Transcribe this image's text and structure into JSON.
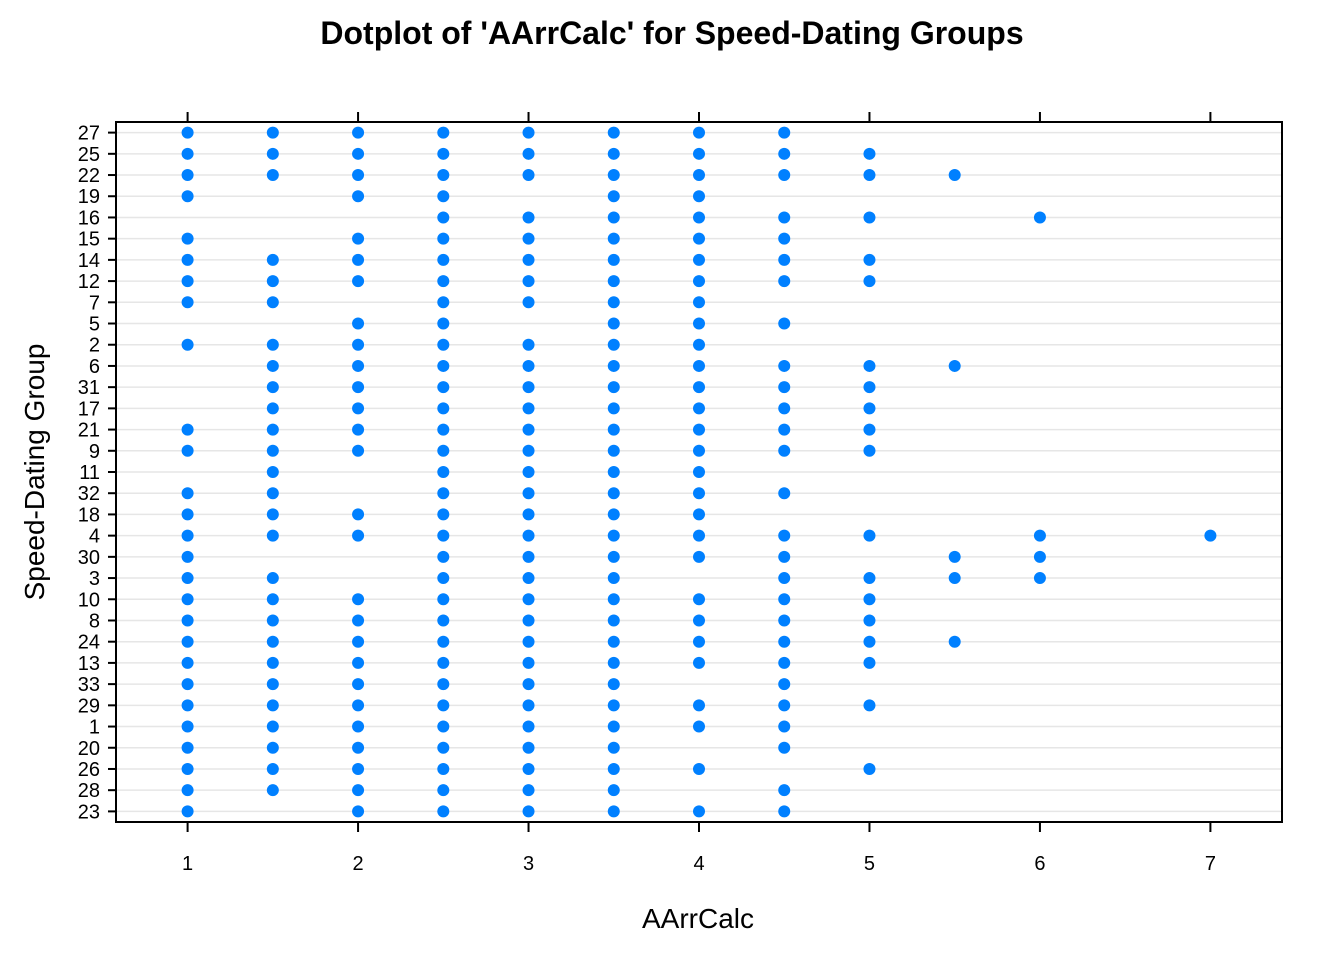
{
  "chart_data": {
    "type": "scatter",
    "title": "Dotplot of 'AArrCalc' for Speed-Dating Groups",
    "xlabel": "AArrCalc",
    "ylabel": "Speed-Dating Group",
    "xlim": [
      0.58,
      7.42
    ],
    "x_ticks": [
      "1",
      "2",
      "3",
      "4",
      "5",
      "6",
      "7"
    ],
    "y_categories": [
      "23",
      "28",
      "26",
      "20",
      "1",
      "29",
      "33",
      "13",
      "24",
      "8",
      "10",
      "3",
      "30",
      "4",
      "18",
      "32",
      "11",
      "9",
      "21",
      "17",
      "31",
      "6",
      "2",
      "5",
      "7",
      "12",
      "14",
      "15",
      "16",
      "19",
      "22",
      "25",
      "27"
    ],
    "grid": true,
    "point_color": "#0080ff",
    "series": [
      {
        "group": "27",
        "x": [
          1,
          1.5,
          2,
          2.5,
          3,
          3.5,
          4,
          4.5
        ]
      },
      {
        "group": "25",
        "x": [
          1,
          1.5,
          2,
          2.5,
          3,
          3.5,
          4,
          4.5,
          5
        ]
      },
      {
        "group": "22",
        "x": [
          1,
          1.5,
          2,
          2.5,
          3,
          3.5,
          4,
          4.5,
          5,
          5.5
        ]
      },
      {
        "group": "19",
        "x": [
          1,
          2,
          2.5,
          3.5,
          4
        ]
      },
      {
        "group": "16",
        "x": [
          2.5,
          3,
          3.5,
          4,
          4.5,
          5,
          6
        ]
      },
      {
        "group": "15",
        "x": [
          1,
          2,
          2.5,
          3,
          3.5,
          4,
          4.5
        ]
      },
      {
        "group": "14",
        "x": [
          1,
          1.5,
          2,
          2.5,
          3,
          3.5,
          4,
          4.5,
          5
        ]
      },
      {
        "group": "12",
        "x": [
          1,
          1.5,
          2,
          2.5,
          3,
          3.5,
          4,
          4.5,
          5
        ]
      },
      {
        "group": "7",
        "x": [
          1,
          1.5,
          2.5,
          3,
          3.5,
          4
        ]
      },
      {
        "group": "5",
        "x": [
          2,
          2.5,
          3.5,
          4,
          4.5
        ]
      },
      {
        "group": "2",
        "x": [
          1,
          1.5,
          2,
          2.5,
          3,
          3.5,
          4
        ]
      },
      {
        "group": "6",
        "x": [
          1.5,
          2,
          2.5,
          3,
          3.5,
          4,
          4.5,
          5,
          5.5
        ]
      },
      {
        "group": "31",
        "x": [
          1.5,
          2,
          2.5,
          3,
          3.5,
          4,
          4.5,
          5
        ]
      },
      {
        "group": "17",
        "x": [
          1.5,
          2,
          2.5,
          3,
          3.5,
          4,
          4.5,
          5
        ]
      },
      {
        "group": "21",
        "x": [
          1,
          1.5,
          2,
          2.5,
          3,
          3.5,
          4,
          4.5,
          5
        ]
      },
      {
        "group": "9",
        "x": [
          1,
          1.5,
          2,
          2.5,
          3,
          3.5,
          4,
          4.5,
          5
        ]
      },
      {
        "group": "11",
        "x": [
          1.5,
          2.5,
          3,
          3.5,
          4
        ]
      },
      {
        "group": "32",
        "x": [
          1,
          1.5,
          2.5,
          3,
          3.5,
          4,
          4.5
        ]
      },
      {
        "group": "18",
        "x": [
          1,
          1.5,
          2,
          2.5,
          3,
          3.5,
          4
        ]
      },
      {
        "group": "4",
        "x": [
          1,
          1.5,
          2,
          2.5,
          3,
          3.5,
          4,
          4.5,
          5,
          6,
          7
        ]
      },
      {
        "group": "30",
        "x": [
          1,
          2.5,
          3,
          3.5,
          4,
          4.5,
          5.5,
          6
        ]
      },
      {
        "group": "3",
        "x": [
          1,
          1.5,
          2.5,
          3,
          3.5,
          4.5,
          5,
          5.5,
          6
        ]
      },
      {
        "group": "10",
        "x": [
          1,
          1.5,
          2,
          2.5,
          3,
          3.5,
          4,
          4.5,
          5
        ]
      },
      {
        "group": "8",
        "x": [
          1,
          1.5,
          2,
          2.5,
          3,
          3.5,
          4,
          4.5,
          5
        ]
      },
      {
        "group": "24",
        "x": [
          1,
          1.5,
          2,
          2.5,
          3,
          3.5,
          4,
          4.5,
          5,
          5.5
        ]
      },
      {
        "group": "13",
        "x": [
          1,
          1.5,
          2,
          2.5,
          3,
          3.5,
          4,
          4.5,
          5
        ]
      },
      {
        "group": "33",
        "x": [
          1,
          1.5,
          2,
          2.5,
          3,
          3.5,
          4.5
        ]
      },
      {
        "group": "29",
        "x": [
          1,
          1.5,
          2,
          2.5,
          3,
          3.5,
          4,
          4.5,
          5
        ]
      },
      {
        "group": "1",
        "x": [
          1,
          1.5,
          2,
          2.5,
          3,
          3.5,
          4,
          4.5
        ]
      },
      {
        "group": "20",
        "x": [
          1,
          1.5,
          2,
          2.5,
          3,
          3.5,
          4.5
        ]
      },
      {
        "group": "26",
        "x": [
          1,
          1.5,
          2,
          2.5,
          3,
          3.5,
          4,
          5
        ]
      },
      {
        "group": "28",
        "x": [
          1,
          1.5,
          2,
          2.5,
          3,
          3.5,
          4.5
        ]
      },
      {
        "group": "23",
        "x": [
          1,
          2,
          2.5,
          3,
          3.5,
          4,
          4.5
        ]
      }
    ]
  }
}
